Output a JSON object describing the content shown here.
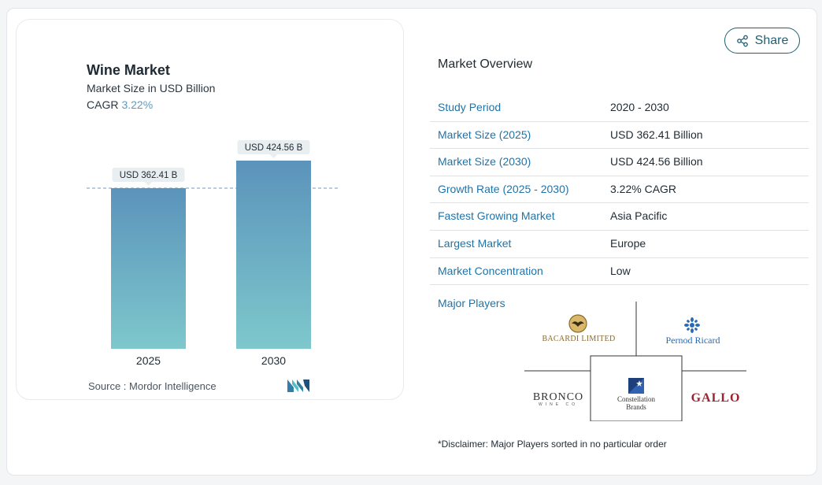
{
  "chart": {
    "title": "Wine Market",
    "subtitle": "Market Size in USD Billion",
    "cagr_label": "CAGR",
    "cagr_value": "3.22%",
    "source": "Source :  Mordor Intelligence"
  },
  "chart_data": {
    "type": "bar",
    "categories": [
      "2025",
      "2030"
    ],
    "values": [
      362.41,
      424.56
    ],
    "data_labels": [
      "USD 362.41 B",
      "USD 424.56 B"
    ],
    "title": "Wine Market",
    "subtitle": "Market Size in USD Billion",
    "reference_line_value": 362.41,
    "colors": {
      "bar_top": "#5b93bb",
      "bar_bottom": "#7ec8cc",
      "ref_line": "#6f9ec6"
    }
  },
  "share": {
    "label": "Share",
    "icon": "share-icon"
  },
  "overview": {
    "title": "Market Overview",
    "rows": [
      {
        "key": "Study Period",
        "value": "2020 - 2030"
      },
      {
        "key": "Market Size (2025)",
        "value": "USD 362.41 Billion"
      },
      {
        "key": "Market Size (2030)",
        "value": "USD 424.56 Billion"
      },
      {
        "key": "Growth Rate (2025 - 2030)",
        "value": "3.22% CAGR"
      },
      {
        "key": "Fastest Growing Market",
        "value": "Asia Pacific"
      },
      {
        "key": "Largest Market",
        "value": "Europe"
      },
      {
        "key": "Market Concentration",
        "value": "Low"
      }
    ],
    "major_players_label": "Major Players",
    "players": [
      "BACARDI LIMITED",
      "Pernod Ricard",
      "BRONCO",
      "WINE CO",
      "Constellation",
      "Brands",
      "GALLO"
    ],
    "disclaimer": "*Disclaimer: Major Players sorted in no particular order"
  }
}
